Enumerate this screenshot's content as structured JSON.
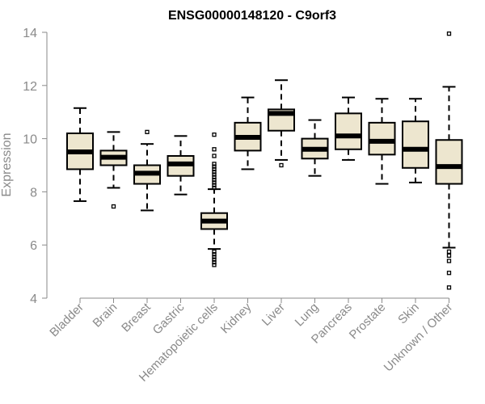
{
  "chart_data": {
    "type": "boxplot",
    "title": "ENSG00000148120 - C9orf3",
    "xlabel": "",
    "ylabel": "Expression",
    "ylim": [
      4,
      14
    ],
    "yticks": [
      4,
      6,
      8,
      10,
      12,
      14
    ],
    "grid": false,
    "legend": "none",
    "box_fill": "#ede6cf",
    "categories": [
      "Bladder",
      "Brain",
      "Breast",
      "Gastric",
      "Hematopoietic cells",
      "Kidney",
      "Liver",
      "Lung",
      "Pancreas",
      "Prostate",
      "Skin",
      "Unknown / Other"
    ],
    "boxes": [
      {
        "min": 7.65,
        "q1": 8.85,
        "median": 9.5,
        "q3": 10.2,
        "max": 11.15,
        "outliers": []
      },
      {
        "min": 8.15,
        "q1": 9.0,
        "median": 9.3,
        "q3": 9.55,
        "max": 10.25,
        "outliers": [
          7.45
        ]
      },
      {
        "min": 7.3,
        "q1": 8.3,
        "median": 8.7,
        "q3": 9.0,
        "max": 9.8,
        "outliers": [
          10.25
        ]
      },
      {
        "min": 7.9,
        "q1": 8.6,
        "median": 9.05,
        "q3": 9.35,
        "max": 10.1,
        "outliers": []
      },
      {
        "min": 5.85,
        "q1": 6.6,
        "median": 6.9,
        "q3": 7.2,
        "max": 8.1,
        "outliers": [
          10.15,
          9.6,
          9.35,
          9.05,
          8.95,
          8.85,
          8.75,
          8.65,
          8.55,
          8.45,
          8.35,
          8.25,
          8.15,
          5.75,
          5.65,
          5.55,
          5.45,
          5.35,
          5.25
        ]
      },
      {
        "min": 8.85,
        "q1": 9.55,
        "median": 10.05,
        "q3": 10.6,
        "max": 11.55,
        "outliers": []
      },
      {
        "min": 9.2,
        "q1": 10.3,
        "median": 10.95,
        "q3": 11.1,
        "max": 12.2,
        "outliers": [
          9.0
        ]
      },
      {
        "min": 8.6,
        "q1": 9.25,
        "median": 9.6,
        "q3": 10.0,
        "max": 10.7,
        "outliers": []
      },
      {
        "min": 9.2,
        "q1": 9.6,
        "median": 10.1,
        "q3": 10.95,
        "max": 11.55,
        "outliers": []
      },
      {
        "min": 8.3,
        "q1": 9.4,
        "median": 9.9,
        "q3": 10.6,
        "max": 11.5,
        "outliers": []
      },
      {
        "min": 8.35,
        "q1": 8.9,
        "median": 9.6,
        "q3": 10.65,
        "max": 11.5,
        "outliers": []
      },
      {
        "min": 5.9,
        "q1": 8.3,
        "median": 8.95,
        "q3": 9.95,
        "max": 11.95,
        "outliers": [
          13.95,
          5.75,
          5.6,
          5.4,
          4.95,
          4.4
        ]
      }
    ]
  }
}
